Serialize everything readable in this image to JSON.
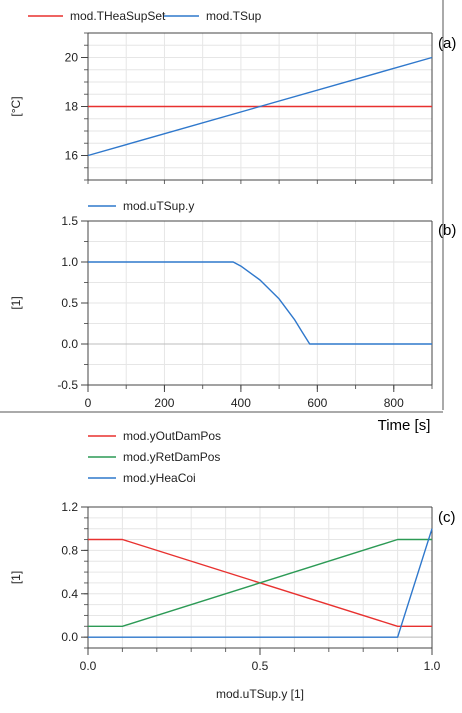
{
  "chart_data": [
    {
      "id": "a",
      "type": "line",
      "panel_label": "(a)",
      "title": "",
      "xlabel": "",
      "ylabel": "[°C]",
      "xlim": [
        0,
        900
      ],
      "ylim": [
        15,
        21
      ],
      "yticks": [
        16,
        18,
        20
      ],
      "xticks": [],
      "grid": true,
      "legend": "top-left",
      "series": [
        {
          "name": "mod.THeaSupSet",
          "color": "#e8312f",
          "x": [
            0,
            900
          ],
          "y": [
            18,
            18
          ]
        },
        {
          "name": "mod.TSup",
          "color": "#2f78cc",
          "x": [
            0,
            900
          ],
          "y": [
            16,
            20
          ]
        }
      ]
    },
    {
      "id": "b",
      "type": "line",
      "panel_label": "(b)",
      "title": "",
      "xlabel": "Time [s]",
      "ylabel": "[1]",
      "xlim": [
        0,
        900
      ],
      "ylim": [
        -0.5,
        1.5
      ],
      "yticks": [
        "1.5",
        "1.0",
        "0.5",
        "0.0",
        "-0.5"
      ],
      "xticks": [
        "0",
        "200",
        "400",
        "600",
        "800"
      ],
      "grid": true,
      "legend": "top-left",
      "series": [
        {
          "name": "mod.uTSup.y",
          "color": "#2f78cc",
          "x": [
            0,
            380,
            400,
            450,
            500,
            540,
            560,
            580,
            900
          ],
          "y": [
            1.0,
            1.0,
            0.95,
            0.78,
            0.55,
            0.3,
            0.15,
            0.0,
            0.0
          ]
        }
      ]
    },
    {
      "id": "c",
      "type": "line",
      "panel_label": "(c)",
      "title": "",
      "xlabel": "mod.uTSup.y [1]",
      "ylabel": "[1]",
      "xlim": [
        0,
        1
      ],
      "ylim": [
        -0.1,
        1.2
      ],
      "yticks": [
        "1.2",
        "0.8",
        "0.4",
        "0.0"
      ],
      "xticks": [
        "0.0",
        "0.5",
        "1.0"
      ],
      "grid": true,
      "legend": "top-left",
      "series": [
        {
          "name": "mod.yOutDamPos",
          "color": "#e8312f",
          "x": [
            0,
            0.1,
            0.9,
            1.0
          ],
          "y": [
            0.9,
            0.9,
            0.1,
            0.1
          ]
        },
        {
          "name": "mod.yRetDamPos",
          "color": "#2c9a55",
          "x": [
            0,
            0.1,
            0.9,
            1.0
          ],
          "y": [
            0.1,
            0.1,
            0.9,
            0.9
          ]
        },
        {
          "name": "mod.yHeaCoi",
          "color": "#2f78cc",
          "x": [
            0,
            0.9,
            1.0
          ],
          "y": [
            0.0,
            0.0,
            1.0
          ]
        }
      ]
    }
  ]
}
